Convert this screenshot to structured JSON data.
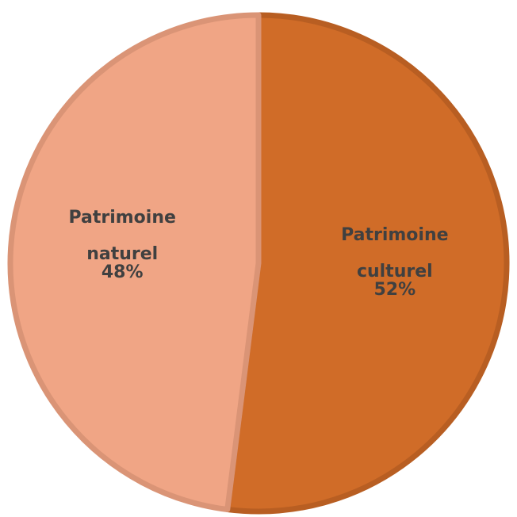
{
  "chart_data": {
    "type": "pie",
    "categories": [
      "Patrimoine culturel",
      "Patrimoine naturel"
    ],
    "values": [
      52,
      48
    ],
    "value_labels": [
      "52%",
      "48%"
    ],
    "colors": [
      "#d06c28",
      "#f0a585"
    ],
    "edge_colors": [
      "#b85e22",
      "#da9476"
    ]
  }
}
